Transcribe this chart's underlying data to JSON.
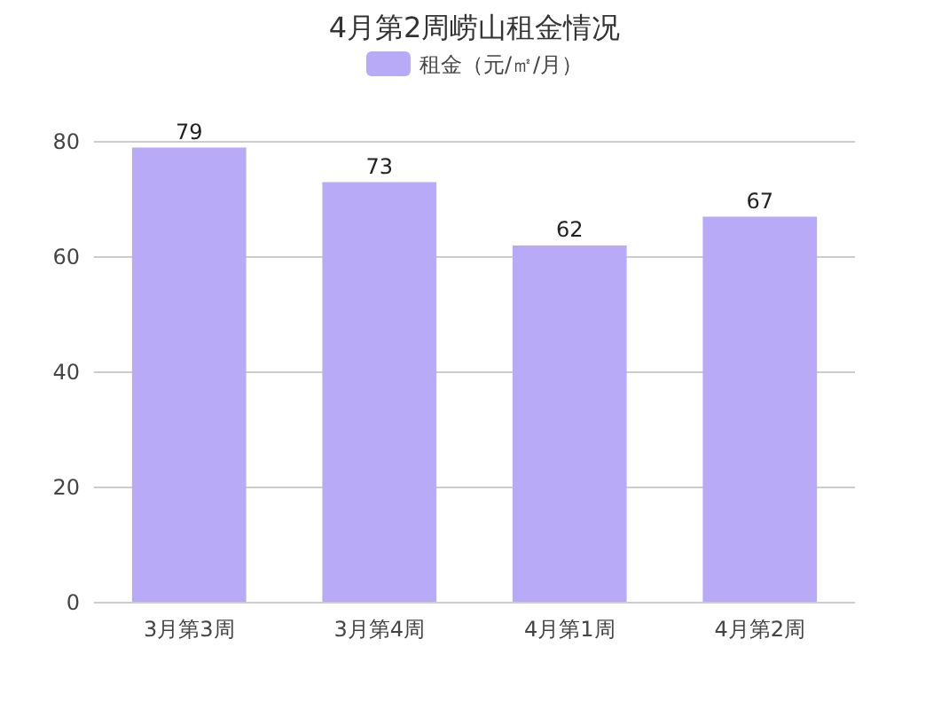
{
  "chart_data": {
    "type": "bar",
    "title": "4月第2周崂山租金情况",
    "categories": [
      "3月第3周",
      "3月第4周",
      "4月第1周",
      "4月第2周"
    ],
    "series": [
      {
        "name": "租金（元/㎡/月）",
        "color": "#b8aaf7",
        "values": [
          79,
          73,
          62,
          67
        ]
      }
    ],
    "ylim": [
      0,
      80
    ],
    "yticks": [
      0,
      20,
      40,
      60,
      80
    ],
    "grid": "y",
    "legend": "top",
    "data_labels": true
  }
}
